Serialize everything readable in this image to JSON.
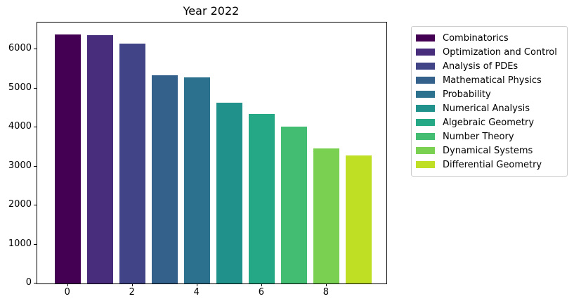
{
  "chart_data": {
    "type": "bar",
    "title": "Year 2022",
    "categories": [
      "Combinatorics",
      "Optimization and Control",
      "Analysis of PDEs",
      "Mathematical Physics",
      "Probability",
      "Numerical Analysis",
      "Algebraic Geometry",
      "Number Theory",
      "Dynamical Systems",
      "Differential Geometry"
    ],
    "x": [
      0,
      1,
      2,
      3,
      4,
      5,
      6,
      7,
      8,
      9
    ],
    "values": [
      6385,
      6360,
      6145,
      5330,
      5285,
      4630,
      4355,
      4020,
      3455,
      3280
    ],
    "bar_colors": [
      "#440154",
      "#472d7b",
      "#414487",
      "#33618c",
      "#2c728e",
      "#21918c",
      "#24a885",
      "#42bd71",
      "#7ad151",
      "#bfdf25"
    ],
    "bar_width_units": 0.8,
    "xlabel": "",
    "ylabel": "",
    "xticks": [
      0,
      2,
      4,
      6,
      8
    ],
    "yticks": [
      0,
      1000,
      2000,
      3000,
      4000,
      5000,
      6000
    ],
    "xlim": [
      -0.95,
      9.85
    ],
    "ylim": [
      0,
      6690
    ],
    "grid": false,
    "legend": {
      "position": "outside-upper-right",
      "entries": [
        "Combinatorics",
        "Optimization and Control",
        "Analysis of PDEs",
        "Mathematical Physics",
        "Probability",
        "Numerical Analysis",
        "Algebraic Geometry",
        "Number Theory",
        "Dynamical Systems",
        "Differential Geometry"
      ]
    }
  }
}
